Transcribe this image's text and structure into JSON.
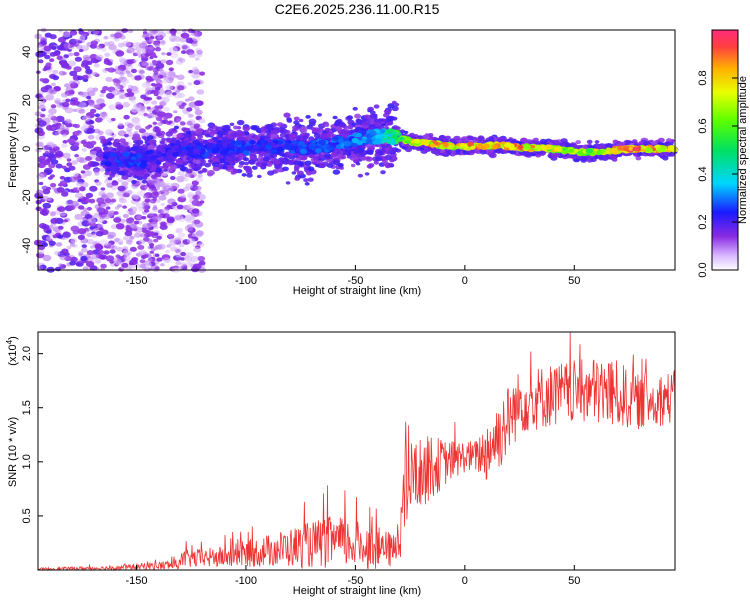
{
  "figure_title": "C2E6.2025.236.11.00.R15",
  "chart_data": [
    {
      "type": "heatmap",
      "title": "C2E6.2025.236.11.00.R15",
      "xlabel": "Height of straight line (km)",
      "ylabel": "Frequency (Hz)",
      "xlim": [
        -195,
        96
      ],
      "ylim": [
        -50,
        49
      ],
      "xticks": [
        -150,
        -100,
        -50,
        0,
        50
      ],
      "xtick_labels": [
        "-150",
        "-100",
        "-50",
        "0",
        "50"
      ],
      "yticks": [
        -40,
        -20,
        0,
        20,
        40
      ],
      "ytick_labels": [
        "-40",
        "-20",
        "0",
        "20",
        "40"
      ],
      "colorbar": {
        "label": "Normalized spectral amplitude",
        "range": [
          0,
          1
        ],
        "ticks": [
          0.0,
          0.2,
          0.4,
          0.6,
          0.8
        ],
        "tick_labels": [
          "0.0",
          "0.2",
          "0.4",
          "0.6",
          "0.8"
        ],
        "colormap": "rainbow"
      },
      "ridge": [
        {
          "x": -163,
          "f": -4.0,
          "amp": 0.25
        },
        {
          "x": -150,
          "f": -5.0,
          "amp": 0.28
        },
        {
          "x": -140,
          "f": -3.0,
          "amp": 0.22
        },
        {
          "x": -130,
          "f": 0.0,
          "amp": 0.25
        },
        {
          "x": -120,
          "f": -1.0,
          "amp": 0.27
        },
        {
          "x": -110,
          "f": 0.5,
          "amp": 0.26
        },
        {
          "x": -100,
          "f": 0.0,
          "amp": 0.28
        },
        {
          "x": -90,
          "f": 1.0,
          "amp": 0.26
        },
        {
          "x": -80,
          "f": 0.5,
          "amp": 0.27
        },
        {
          "x": -70,
          "f": 0.0,
          "amp": 0.3
        },
        {
          "x": -60,
          "f": 2.0,
          "amp": 0.3
        },
        {
          "x": -50,
          "f": 4.0,
          "amp": 0.33
        },
        {
          "x": -40,
          "f": 5.0,
          "amp": 0.38
        },
        {
          "x": -32,
          "f": 5.0,
          "amp": 0.55
        },
        {
          "x": -25,
          "f": 3.0,
          "amp": 0.8
        },
        {
          "x": -15,
          "f": 2.0,
          "amp": 0.9
        },
        {
          "x": -5,
          "f": 1.0,
          "amp": 0.88
        },
        {
          "x": 5,
          "f": 1.0,
          "amp": 0.9
        },
        {
          "x": 15,
          "f": 1.5,
          "amp": 0.85
        },
        {
          "x": 25,
          "f": 0.5,
          "amp": 0.9
        },
        {
          "x": 35,
          "f": 0.5,
          "amp": 0.82
        },
        {
          "x": 45,
          "f": -0.5,
          "amp": 0.78
        },
        {
          "x": 55,
          "f": -1.5,
          "amp": 0.7
        },
        {
          "x": 65,
          "f": -1.0,
          "amp": 0.85
        },
        {
          "x": 75,
          "f": 0.0,
          "amp": 0.95
        },
        {
          "x": 85,
          "f": 0.0,
          "amp": 0.9
        },
        {
          "x": 95,
          "f": 0.0,
          "amp": 0.88
        }
      ]
    },
    {
      "type": "line",
      "xlabel": "Height of straight line (km)",
      "ylabel": "SNR (10 * v/v)",
      "yscale_label": "(x10",
      "yscale_exponent": "4",
      "xlim": [
        -195,
        96
      ],
      "ylim": [
        0,
        2.2
      ],
      "xticks": [
        -150,
        -100,
        -50,
        0,
        50
      ],
      "xtick_labels": [
        "-150",
        "-100",
        "-50",
        "0",
        "50"
      ],
      "yticks": [
        0.5,
        1.0,
        1.5,
        2.0
      ],
      "ytick_labels": [
        "0.5",
        "1.0",
        "1.5",
        "2.0"
      ],
      "color": "#ee3333",
      "envelope": [
        {
          "x": -195,
          "mean": 0.01,
          "spread": 0.01
        },
        {
          "x": -160,
          "mean": 0.02,
          "spread": 0.02
        },
        {
          "x": -140,
          "mean": 0.04,
          "spread": 0.04
        },
        {
          "x": -131,
          "mean": 0.05,
          "spread": 0.05
        },
        {
          "x": -129,
          "mean": 0.1,
          "spread": 0.08
        },
        {
          "x": -110,
          "mean": 0.12,
          "spread": 0.1
        },
        {
          "x": -90,
          "mean": 0.18,
          "spread": 0.15
        },
        {
          "x": -75,
          "mean": 0.22,
          "spread": 0.2
        },
        {
          "x": -60,
          "mean": 0.26,
          "spread": 0.25
        },
        {
          "x": -50,
          "mean": 0.24,
          "spread": 0.22
        },
        {
          "x": -40,
          "mean": 0.2,
          "spread": 0.2
        },
        {
          "x": -32,
          "mean": 0.18,
          "spread": 0.15
        },
        {
          "x": -28,
          "mean": 0.6,
          "spread": 0.45
        },
        {
          "x": -25,
          "mean": 0.85,
          "spread": 0.35
        },
        {
          "x": -15,
          "mean": 0.95,
          "spread": 0.3
        },
        {
          "x": -8,
          "mean": 1.0,
          "spread": 0.2
        },
        {
          "x": 0,
          "mean": 1.05,
          "spread": 0.15
        },
        {
          "x": 5,
          "mean": 1.05,
          "spread": 0.15
        },
        {
          "x": 10,
          "mean": 1.1,
          "spread": 0.3
        },
        {
          "x": 17,
          "mean": 1.3,
          "spread": 0.35
        },
        {
          "x": 25,
          "mean": 1.55,
          "spread": 0.3
        },
        {
          "x": 40,
          "mean": 1.62,
          "spread": 0.3
        },
        {
          "x": 55,
          "mean": 1.65,
          "spread": 0.3
        },
        {
          "x": 65,
          "mean": 1.65,
          "spread": 0.35
        },
        {
          "x": 80,
          "mean": 1.55,
          "spread": 0.25
        },
        {
          "x": 96,
          "mean": 1.6,
          "spread": 0.25
        }
      ]
    }
  ]
}
